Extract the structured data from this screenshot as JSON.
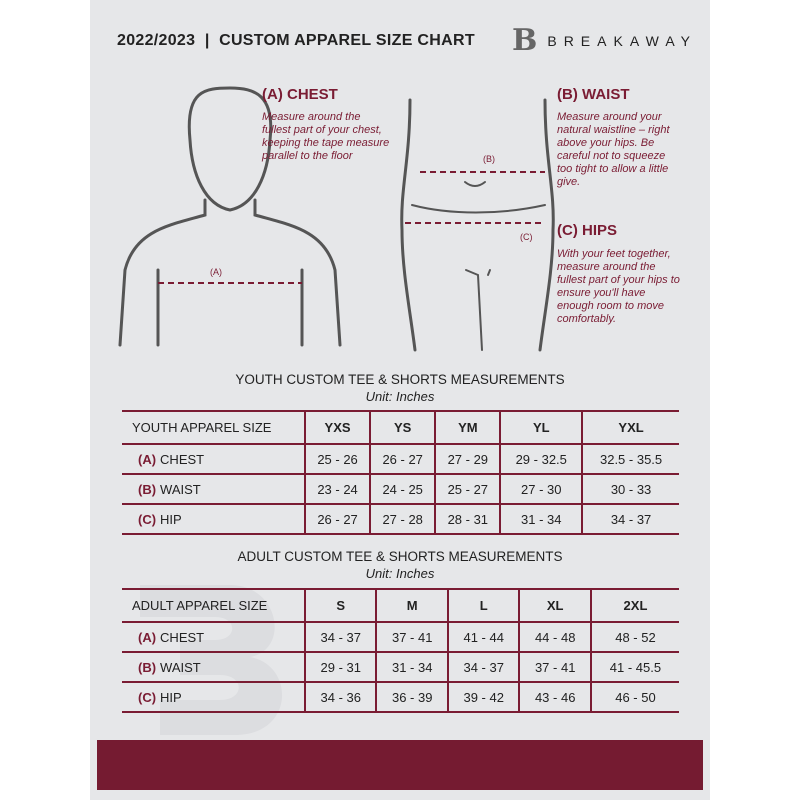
{
  "header": {
    "title": "2022/2023  |  CUSTOM APPAREL SIZE CHART",
    "logo_mark": "B",
    "brand": "BREAKAWAY"
  },
  "measures": {
    "chest": {
      "title": "(A) CHEST",
      "desc": "Measure around the fullest part of your chest, keeping the tape measure parallel to the floor",
      "marker": "(A)"
    },
    "waist": {
      "title": "(B) WAIST",
      "desc": "Measure around your natural waistline – right above your hips. Be careful not to squeeze too tight to allow a little give.",
      "marker": "(B)"
    },
    "hips": {
      "title": "(C) HIPS",
      "desc": "With your feet together, measure around the fullest part of your hips to ensure you'll have enough room to move comfortably.",
      "marker": "(C)"
    }
  },
  "youth": {
    "title": "YOUTH CUSTOM TEE & SHORTS MEASUREMENTS",
    "unit": "Unit: Inches",
    "size_label": "YOUTH APPAREL SIZE",
    "sizes": [
      "YXS",
      "YS",
      "YM",
      "YL",
      "YXL"
    ],
    "rows": [
      {
        "letter": "(A)",
        "name": "CHEST",
        "values": [
          "25 - 26",
          "26 - 27",
          "27 - 29",
          "29 - 32.5",
          "32.5 - 35.5"
        ]
      },
      {
        "letter": "(B)",
        "name": "WAIST",
        "values": [
          "23 - 24",
          "24 - 25",
          "25 - 27",
          "27 - 30",
          "30 - 33"
        ]
      },
      {
        "letter": "(C)",
        "name": "HIP",
        "values": [
          "26 - 27",
          "27 - 28",
          "28 - 31",
          "31 - 34",
          "34 - 37"
        ]
      }
    ]
  },
  "adult": {
    "title": "ADULT CUSTOM TEE & SHORTS MEASUREMENTS",
    "unit": "Unit: Inches",
    "size_label": "ADULT APPAREL SIZE",
    "sizes": [
      "S",
      "M",
      "L",
      "XL",
      "2XL"
    ],
    "rows": [
      {
        "letter": "(A)",
        "name": "CHEST",
        "values": [
          "34 - 37",
          "37 - 41",
          "41 - 44",
          "44 - 48",
          "48 - 52"
        ]
      },
      {
        "letter": "(B)",
        "name": "WAIST",
        "values": [
          "29 - 31",
          "31 - 34",
          "34 - 37",
          "37 - 41",
          "41 - 45.5"
        ]
      },
      {
        "letter": "(C)",
        "name": "HIP",
        "values": [
          "34 - 36",
          "36 - 39",
          "39 - 42",
          "43 - 46",
          "46 - 50"
        ]
      }
    ]
  },
  "colors": {
    "accent": "#7a1c33",
    "background": "#e6e7e9"
  }
}
